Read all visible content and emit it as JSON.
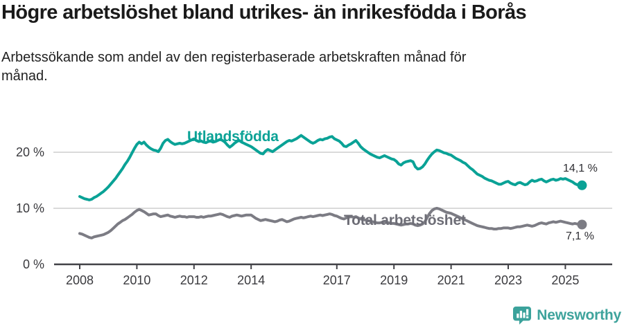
{
  "header": {
    "title": "Högre arbetslöshet bland utrikes- än inrikesfödda i Borås",
    "subtitle": "Arbetssökande som andel av den registerbaserade arbetskraften månad för\nmånad."
  },
  "chart_data": {
    "type": "line",
    "title": "Högre arbetslöshet bland utrikes- än inrikesfödda i Borås",
    "subtitle": "Arbetssökande som andel av den registerbaserade arbetskraften månad för månad.",
    "unit": "%",
    "grid": "horizontal",
    "legend_position": "inline-labels",
    "x_tick_years": [
      2008,
      2010,
      2012,
      2014,
      2017,
      2019,
      2021,
      2023,
      2025
    ],
    "y_ticks": [
      {
        "value": 0,
        "label": "0 %"
      },
      {
        "value": 10,
        "label": "10 %"
      },
      {
        "value": 20,
        "label": "20 %"
      }
    ],
    "ylim": [
      0,
      25
    ],
    "x_start_year": 2008,
    "x_step_months": 1,
    "x_end": "2025-08",
    "series": [
      {
        "name": "Utlandsfödda",
        "color": "#0aa296",
        "end_label": "14,1 %",
        "end_value": 14.1,
        "values": [
          12.1,
          11.9,
          11.7,
          11.6,
          11.5,
          11.6,
          11.9,
          12.1,
          12.4,
          12.7,
          13.0,
          13.4,
          13.8,
          14.3,
          14.8,
          15.3,
          15.9,
          16.5,
          17.1,
          17.8,
          18.4,
          19.1,
          19.9,
          20.7,
          21.4,
          21.8,
          21.5,
          21.8,
          21.3,
          20.9,
          20.6,
          20.4,
          20.3,
          20.1,
          20.7,
          21.6,
          22.1,
          22.3,
          21.9,
          21.6,
          21.4,
          21.5,
          21.6,
          21.5,
          21.6,
          21.8,
          22.0,
          22.2,
          22.4,
          22.1,
          21.9,
          22.0,
          21.8,
          21.7,
          21.9,
          22.0,
          21.8,
          21.9,
          22.1,
          22.3,
          22.1,
          21.8,
          21.3,
          20.9,
          21.2,
          21.6,
          21.9,
          22.1,
          21.8,
          21.6,
          21.4,
          21.2,
          21.0,
          20.7,
          20.4,
          20.1,
          19.8,
          19.7,
          20.2,
          20.5,
          20.3,
          20.1,
          20.4,
          20.7,
          21.0,
          21.3,
          21.6,
          21.9,
          22.1,
          22.0,
          22.2,
          22.4,
          22.7,
          23.0,
          22.7,
          22.4,
          22.1,
          21.8,
          21.6,
          21.8,
          22.1,
          22.3,
          22.2,
          22.4,
          22.5,
          22.7,
          22.8,
          22.4,
          22.2,
          22.0,
          21.6,
          21.1,
          21.0,
          21.3,
          21.5,
          21.8,
          22.1,
          21.6,
          21.0,
          20.6,
          20.3,
          20.0,
          19.7,
          19.5,
          19.3,
          19.1,
          19.0,
          19.2,
          19.4,
          19.2,
          19.0,
          18.8,
          18.7,
          18.4,
          17.9,
          17.7,
          18.1,
          18.3,
          18.4,
          18.5,
          18.3,
          17.4,
          17.0,
          17.1,
          17.4,
          17.9,
          18.6,
          19.2,
          19.7,
          20.1,
          20.4,
          20.3,
          20.1,
          19.9,
          19.8,
          19.6,
          19.5,
          19.2,
          18.9,
          18.7,
          18.5,
          18.2,
          18.0,
          17.6,
          17.2,
          16.9,
          16.5,
          16.1,
          15.9,
          15.7,
          15.4,
          15.2,
          15.0,
          14.9,
          14.7,
          14.5,
          14.3,
          14.3,
          14.5,
          14.7,
          14.8,
          14.5,
          14.3,
          14.2,
          14.5,
          14.6,
          14.4,
          14.2,
          14.3,
          14.7,
          15.0,
          14.8,
          14.9,
          15.1,
          15.2,
          14.9,
          14.7,
          14.9,
          15.1,
          15.2,
          15.0,
          15.1,
          15.3,
          15.2,
          15.3,
          15.1,
          14.9,
          14.7,
          14.4,
          14.2,
          14.1,
          14.1
        ]
      },
      {
        "name": "Total arbetslöshet",
        "color": "#7c7c84",
        "end_label": "7,1 %",
        "end_value": 7.1,
        "values": [
          5.5,
          5.4,
          5.2,
          5.0,
          4.8,
          4.7,
          4.9,
          5.0,
          5.1,
          5.2,
          5.3,
          5.5,
          5.7,
          6.0,
          6.4,
          6.8,
          7.2,
          7.5,
          7.8,
          8.0,
          8.3,
          8.6,
          8.9,
          9.3,
          9.6,
          9.8,
          9.6,
          9.4,
          9.1,
          8.8,
          8.9,
          9.0,
          9.0,
          8.7,
          8.5,
          8.6,
          8.7,
          8.8,
          8.6,
          8.5,
          8.4,
          8.5,
          8.6,
          8.5,
          8.5,
          8.4,
          8.5,
          8.5,
          8.5,
          8.4,
          8.4,
          8.5,
          8.4,
          8.5,
          8.6,
          8.6,
          8.7,
          8.8,
          8.9,
          9.0,
          8.9,
          8.7,
          8.5,
          8.4,
          8.6,
          8.7,
          8.8,
          8.7,
          8.6,
          8.7,
          8.8,
          8.8,
          8.8,
          8.5,
          8.2,
          8.0,
          7.8,
          7.9,
          8.0,
          7.9,
          7.8,
          7.7,
          7.6,
          7.7,
          7.9,
          8.0,
          7.8,
          7.6,
          7.7,
          7.9,
          8.1,
          8.2,
          8.3,
          8.4,
          8.3,
          8.4,
          8.5,
          8.6,
          8.5,
          8.6,
          8.7,
          8.8,
          8.7,
          8.8,
          8.9,
          9.0,
          8.9,
          8.7,
          8.6,
          8.4,
          8.2,
          8.1,
          8.3,
          8.4,
          8.5,
          8.4,
          8.5,
          8.3,
          8.1,
          8.0,
          7.9,
          7.8,
          7.7,
          7.6,
          7.5,
          7.4,
          7.4,
          7.5,
          7.6,
          7.5,
          7.4,
          7.3,
          7.3,
          7.2,
          7.1,
          7.0,
          7.1,
          7.2,
          7.2,
          7.3,
          7.2,
          7.0,
          6.9,
          7.0,
          7.2,
          7.6,
          8.4,
          9.1,
          9.6,
          9.9,
          10.0,
          9.9,
          9.7,
          9.5,
          9.3,
          9.2,
          9.1,
          8.9,
          8.7,
          8.5,
          8.3,
          8.1,
          7.9,
          7.7,
          7.5,
          7.3,
          7.1,
          6.9,
          6.8,
          6.7,
          6.6,
          6.5,
          6.4,
          6.4,
          6.3,
          6.3,
          6.4,
          6.4,
          6.5,
          6.5,
          6.5,
          6.4,
          6.5,
          6.6,
          6.7,
          6.7,
          6.8,
          6.9,
          7.0,
          6.9,
          6.8,
          6.9,
          7.1,
          7.3,
          7.4,
          7.3,
          7.2,
          7.4,
          7.5,
          7.6,
          7.5,
          7.6,
          7.7,
          7.6,
          7.5,
          7.4,
          7.3,
          7.2,
          7.3,
          7.2,
          7.1,
          7.1
        ]
      }
    ],
    "colors": {
      "grid": "#dadada",
      "axis": "#414146",
      "axis_text": "#3a3a3e",
      "value_label_text": "#2e2e33",
      "brand_teal": "#3ea39c"
    }
  },
  "footer": {
    "brand": "Newsworthy"
  }
}
